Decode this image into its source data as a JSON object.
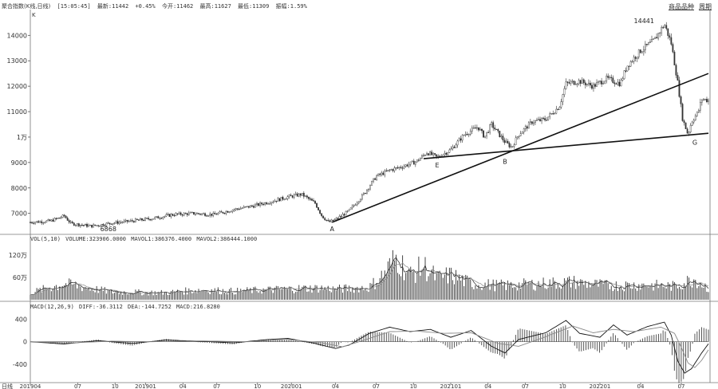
{
  "header": {
    "title": "聚合指数(K线,日线)",
    "time": "[15:05:45]",
    "latest": "最新:11442",
    "change": "+0.45%",
    "open": "今开:11462",
    "high": "最高:11627",
    "low": "最低:11309",
    "amp": "振幅:1.59%"
  },
  "unit_label": "K",
  "top_right": {
    "btn1": "商品品种",
    "btn2": "周期"
  },
  "volume_header": {
    "label": "VOL(5,10)",
    "volume": "VOLUME:323906.0000",
    "mavol1": "MAVOL1:386376.4000",
    "mavol2": "MAVOL2:386444.1000"
  },
  "macd_header": {
    "label": "MACD(12,26,9)",
    "diff": "DIFF:-36.3112",
    "dea": "DEA:-144.7252",
    "macd": "MACD:216.8280"
  },
  "chart_data": {
    "type": "candlestick",
    "price_ylim": [
      6300,
      14700
    ],
    "price_ticks": [
      {
        "v": 7000,
        "label": "7000"
      },
      {
        "v": 8000,
        "label": "8000"
      },
      {
        "v": 9000,
        "label": "9000"
      },
      {
        "v": 10000,
        "label": "1万"
      },
      {
        "v": 11000,
        "label": "11000"
      },
      {
        "v": 12000,
        "label": "12000"
      },
      {
        "v": 13000,
        "label": "13000"
      },
      {
        "v": 14000,
        "label": "14000"
      }
    ],
    "volume_ylim": [
      0,
      1500000
    ],
    "volume_ticks": [
      {
        "v": 600000,
        "label": "60万"
      },
      {
        "v": 1200000,
        "label": "120万"
      }
    ],
    "macd_ylim": [
      -700,
      550
    ],
    "macd_ticks": [
      {
        "v": 400,
        "label": "400"
      },
      {
        "v": 0,
        "label": "0"
      },
      {
        "v": -400,
        "label": "-400"
      }
    ],
    "x_ticks": [
      {
        "t": 0.0,
        "label": "201904"
      },
      {
        "t": 0.07,
        "label": "07"
      },
      {
        "t": 0.125,
        "label": "10"
      },
      {
        "t": 0.17,
        "label": "201901"
      },
      {
        "t": 0.225,
        "label": "04"
      },
      {
        "t": 0.275,
        "label": "07"
      },
      {
        "t": 0.335,
        "label": "10"
      },
      {
        "t": 0.385,
        "label": "202001"
      },
      {
        "t": 0.45,
        "label": "04"
      },
      {
        "t": 0.51,
        "label": "07"
      },
      {
        "t": 0.565,
        "label": "10"
      },
      {
        "t": 0.62,
        "label": "202101"
      },
      {
        "t": 0.675,
        "label": "04"
      },
      {
        "t": 0.73,
        "label": "07"
      },
      {
        "t": 0.785,
        "label": "10"
      },
      {
        "t": 0.84,
        "label": "202201"
      },
      {
        "t": 0.9,
        "label": "04"
      },
      {
        "t": 0.96,
        "label": "07"
      }
    ],
    "x_axis_prefix": "日线",
    "price_path": [
      [
        0.0,
        6650
      ],
      [
        0.03,
        6700
      ],
      [
        0.05,
        6900
      ],
      [
        0.06,
        6600
      ],
      [
        0.09,
        6500
      ],
      [
        0.12,
        6620
      ],
      [
        0.15,
        6700
      ],
      [
        0.18,
        6800
      ],
      [
        0.21,
        6950
      ],
      [
        0.24,
        7000
      ],
      [
        0.27,
        6950
      ],
      [
        0.3,
        7150
      ],
      [
        0.33,
        7300
      ],
      [
        0.36,
        7500
      ],
      [
        0.38,
        7650
      ],
      [
        0.4,
        7750
      ],
      [
        0.42,
        7400
      ],
      [
        0.43,
        6900
      ],
      [
        0.44,
        6650
      ],
      [
        0.45,
        6750
      ],
      [
        0.47,
        7100
      ],
      [
        0.49,
        7700
      ],
      [
        0.51,
        8450
      ],
      [
        0.53,
        8700
      ],
      [
        0.55,
        8850
      ],
      [
        0.57,
        9050
      ],
      [
        0.585,
        9400
      ],
      [
        0.6,
        9200
      ],
      [
        0.62,
        9500
      ],
      [
        0.64,
        10100
      ],
      [
        0.66,
        10400
      ],
      [
        0.67,
        10000
      ],
      [
        0.68,
        10500
      ],
      [
        0.7,
        9800
      ],
      [
        0.71,
        9600
      ],
      [
        0.72,
        10100
      ],
      [
        0.74,
        10600
      ],
      [
        0.76,
        10700
      ],
      [
        0.78,
        11200
      ],
      [
        0.79,
        12100
      ],
      [
        0.81,
        12200
      ],
      [
        0.83,
        12000
      ],
      [
        0.85,
        12300
      ],
      [
        0.87,
        12100
      ],
      [
        0.88,
        12800
      ],
      [
        0.9,
        13400
      ],
      [
        0.92,
        13800
      ],
      [
        0.935,
        14441
      ],
      [
        0.945,
        13700
      ],
      [
        0.955,
        12100
      ],
      [
        0.962,
        10700
      ],
      [
        0.97,
        10100
      ],
      [
        0.975,
        10600
      ],
      [
        0.985,
        11000
      ],
      [
        0.99,
        11500
      ],
      [
        1.0,
        11442
      ]
    ],
    "trendlines": [
      {
        "name": "AB",
        "from": [
          0.445,
          6650
        ],
        "to": [
          1.0,
          12500
        ]
      },
      {
        "name": "EG",
        "from": [
          0.58,
          9150
        ],
        "to": [
          1.0,
          10150
        ]
      }
    ],
    "annotations": [
      {
        "text": "A",
        "t": 0.445,
        "v": 6300
      },
      {
        "text": "B",
        "t": 0.7,
        "v": 8950
      },
      {
        "text": "E",
        "t": 0.6,
        "v": 8800
      },
      {
        "text": "G",
        "t": 0.98,
        "v": 9700
      },
      {
        "text": "14441",
        "t": 0.905,
        "v": 14480
      },
      {
        "text": "6868",
        "t": 0.115,
        "v": 6300
      }
    ],
    "volume_path": [
      [
        0.0,
        200000
      ],
      [
        0.05,
        450000
      ],
      [
        0.08,
        350000
      ],
      [
        0.12,
        220000
      ],
      [
        0.2,
        200000
      ],
      [
        0.25,
        280000
      ],
      [
        0.3,
        240000
      ],
      [
        0.35,
        280000
      ],
      [
        0.4,
        320000
      ],
      [
        0.43,
        330000
      ],
      [
        0.45,
        300000
      ],
      [
        0.5,
        350000
      ],
      [
        0.52,
        700000
      ],
      [
        0.54,
        1200000
      ],
      [
        0.56,
        700000
      ],
      [
        0.58,
        950000
      ],
      [
        0.6,
        600000
      ],
      [
        0.62,
        700000
      ],
      [
        0.65,
        450000
      ],
      [
        0.7,
        400000
      ],
      [
        0.75,
        450000
      ],
      [
        0.8,
        500000
      ],
      [
        0.85,
        400000
      ],
      [
        0.9,
        420000
      ],
      [
        0.95,
        380000
      ],
      [
        0.98,
        600000
      ],
      [
        1.0,
        323906
      ]
    ],
    "diff_path": [
      [
        0.0,
        0
      ],
      [
        0.05,
        -40
      ],
      [
        0.1,
        20
      ],
      [
        0.15,
        -30
      ],
      [
        0.2,
        30
      ],
      [
        0.25,
        10
      ],
      [
        0.3,
        -20
      ],
      [
        0.35,
        40
      ],
      [
        0.38,
        60
      ],
      [
        0.42,
        -30
      ],
      [
        0.45,
        -120
      ],
      [
        0.47,
        -60
      ],
      [
        0.5,
        150
      ],
      [
        0.53,
        260
      ],
      [
        0.56,
        180
      ],
      [
        0.59,
        220
      ],
      [
        0.62,
        80
      ],
      [
        0.65,
        200
      ],
      [
        0.68,
        -80
      ],
      [
        0.7,
        -200
      ],
      [
        0.72,
        40
      ],
      [
        0.76,
        160
      ],
      [
        0.79,
        380
      ],
      [
        0.81,
        150
      ],
      [
        0.84,
        80
      ],
      [
        0.86,
        300
      ],
      [
        0.88,
        120
      ],
      [
        0.91,
        270
      ],
      [
        0.935,
        350
      ],
      [
        0.945,
        120
      ],
      [
        0.955,
        -350
      ],
      [
        0.965,
        -560
      ],
      [
        0.975,
        -480
      ],
      [
        0.99,
        -200
      ],
      [
        1.0,
        -36
      ]
    ],
    "dea_path": [
      [
        0.0,
        0
      ],
      [
        0.06,
        -20
      ],
      [
        0.12,
        10
      ],
      [
        0.18,
        0
      ],
      [
        0.25,
        15
      ],
      [
        0.32,
        0
      ],
      [
        0.38,
        40
      ],
      [
        0.43,
        -20
      ],
      [
        0.46,
        -90
      ],
      [
        0.49,
        20
      ],
      [
        0.53,
        180
      ],
      [
        0.57,
        190
      ],
      [
        0.61,
        150
      ],
      [
        0.65,
        160
      ],
      [
        0.69,
        -30
      ],
      [
        0.72,
        -80
      ],
      [
        0.76,
        90
      ],
      [
        0.8,
        280
      ],
      [
        0.83,
        160
      ],
      [
        0.86,
        220
      ],
      [
        0.89,
        180
      ],
      [
        0.93,
        260
      ],
      [
        0.95,
        150
      ],
      [
        0.96,
        -100
      ],
      [
        0.97,
        -380
      ],
      [
        0.98,
        -460
      ],
      [
        0.99,
        -330
      ],
      [
        1.0,
        -144
      ]
    ]
  }
}
